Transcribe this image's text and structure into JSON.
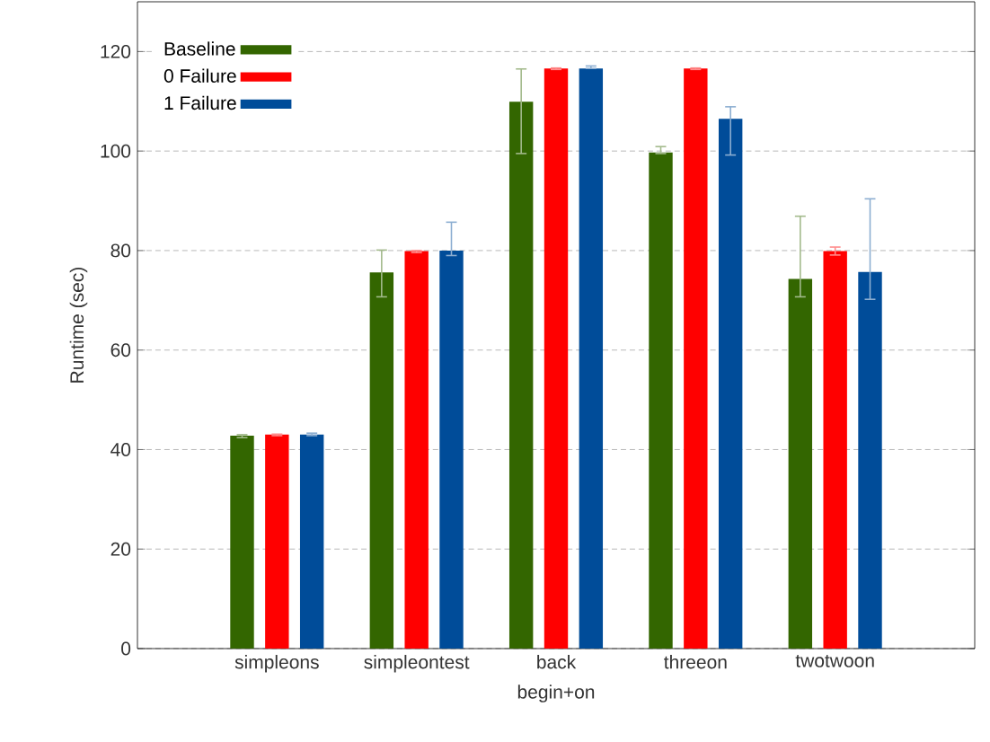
{
  "chart_data": {
    "type": "bar",
    "xlabel": "begin+on",
    "ylabel": "Runtime (sec)",
    "categories": [
      "simpleons",
      "simpleontest",
      "back",
      "threeon",
      "twotwoon"
    ],
    "series": [
      {
        "name": "Baseline",
        "color": "#336600",
        "values": [
          42.8,
          75.6,
          109.9,
          99.7,
          74.3
        ],
        "errors": [
          [
            42.4,
            43.0
          ],
          [
            70.7,
            80.1
          ],
          [
            99.5,
            116.5
          ],
          [
            99.5,
            100.9
          ],
          [
            70.7,
            86.9
          ]
        ]
      },
      {
        "name": "0 Failure",
        "color": "#ff0000",
        "values": [
          43.0,
          79.9,
          116.6,
          116.6,
          79.9
        ],
        "errors": [
          [
            42.8,
            43.1
          ],
          [
            79.6,
            80.0
          ],
          [
            116.4,
            116.7
          ],
          [
            116.4,
            116.7
          ],
          [
            79.1,
            80.7
          ]
        ]
      },
      {
        "name": "1 Failure",
        "color": "#004c99",
        "values": [
          43.0,
          80.0,
          116.6,
          106.5,
          75.7
        ],
        "errors": [
          [
            42.8,
            43.3
          ],
          [
            79.0,
            85.7
          ],
          [
            116.6,
            117.1
          ],
          [
            99.2,
            108.9
          ],
          [
            70.2,
            90.4
          ]
        ]
      }
    ],
    "ylim": [
      0,
      130
    ],
    "yticks": [
      0,
      20,
      40,
      60,
      80,
      100,
      120
    ],
    "grid": "y",
    "legend": "top left"
  }
}
